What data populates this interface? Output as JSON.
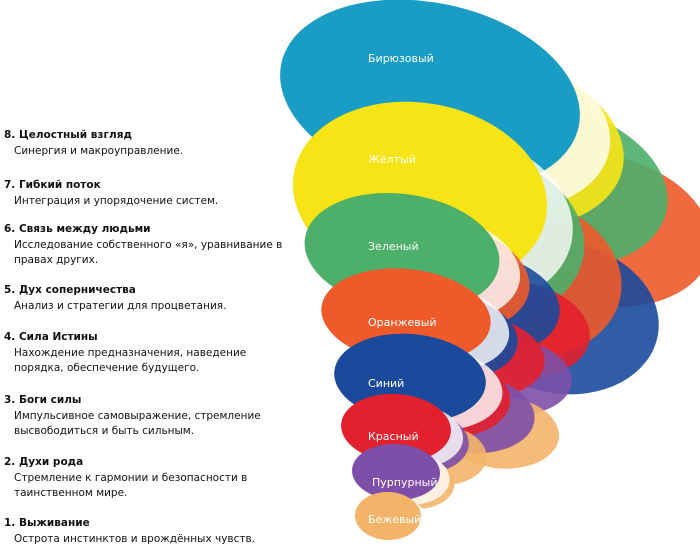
{
  "levels": [
    {
      "heading": "8. Целостный взгляд",
      "desc": "Синергия и макроуправление.",
      "color_name": "Бирюзовый",
      "color": "#1a9dc4"
    },
    {
      "heading": "7. Гибкий поток",
      "desc": "Интеграция и упорядочение систем.",
      "color_name": "Жёлтый",
      "color": "#f7e416"
    },
    {
      "heading": "6. Связь между людьми",
      "desc": "Исследование собственного «я», уравнивание в правах других.",
      "color_name": "Зеленый",
      "color": "#4caf6a"
    },
    {
      "heading": "5. Дух соперничества",
      "desc": "Анализ и стратегии для процветания.",
      "color_name": "Оранжевый",
      "color": "#ee5a2a"
    },
    {
      "heading": "4. Сила Истины",
      "desc": "Нахождение предназначения, наведение порядка, обеспечение будущего.",
      "color_name": "Синий",
      "color": "#1b4a9c"
    },
    {
      "heading": "3. Боги силы",
      "desc": "Импульсивное самовыражение, стремление высвободиться и быть сильным.",
      "color_name": "Красный",
      "color": "#e3202e"
    },
    {
      "heading": "2. Духи рода",
      "desc": "Стремление к гармонии и безопасности в таинственном мире.",
      "color_name": "Пурпурный",
      "color": "#7d4fa8"
    },
    {
      "heading": "1. Выживание",
      "desc": "Острота инстинктов и врождённых чувств.",
      "color_name": "Бежевый",
      "color": "#f3b46a"
    }
  ]
}
